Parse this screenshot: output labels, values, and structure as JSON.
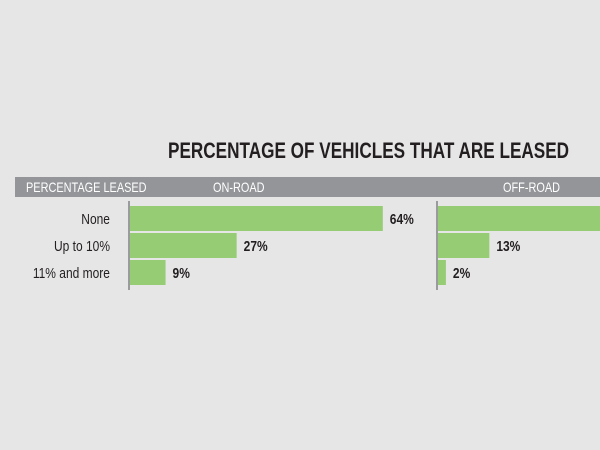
{
  "chart_data": {
    "type": "bar",
    "orientation": "horizontal",
    "title": "PERCENTAGE OF VEHICLES THAT ARE LEASED",
    "category_header": "PERCENTAGE LEASED",
    "categories": [
      "None",
      "Up to 10%",
      "11% and more"
    ],
    "series": [
      {
        "name": "ON-ROAD",
        "values": [
          64,
          27,
          9
        ],
        "labels": [
          "64%",
          "27%",
          "9%"
        ]
      },
      {
        "name": "OFF-ROAD",
        "values": [
          85,
          13,
          2
        ],
        "labels": [
          "",
          "13%",
          "2%"
        ]
      }
    ],
    "unit": "%",
    "bar_color": "#96cc74",
    "header_color": "#939598",
    "grid": false
  }
}
